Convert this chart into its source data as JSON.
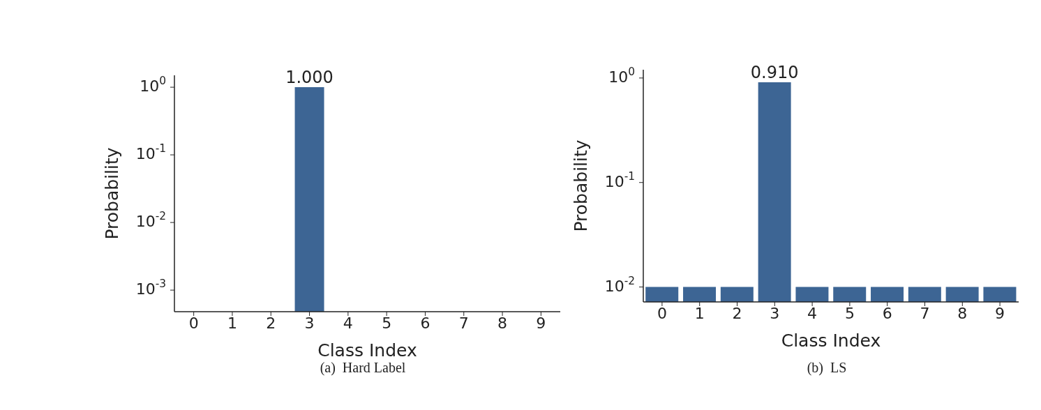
{
  "chart_data": [
    {
      "type": "bar",
      "xlabel": "Class Index",
      "ylabel": "Probability",
      "categories": [
        "0",
        "1",
        "2",
        "3",
        "4",
        "5",
        "6",
        "7",
        "8",
        "9"
      ],
      "values": [
        null,
        null,
        null,
        1.0,
        null,
        null,
        null,
        null,
        null,
        null
      ],
      "color": "#3d6594",
      "value_labels": [
        null,
        null,
        null,
        "1.000",
        null,
        null,
        null,
        null,
        null,
        null
      ],
      "log": true,
      "ylim": [
        0.00048,
        1.5
      ],
      "yticks": [
        {
          "value": 0.001,
          "label": "10$^{-3}$"
        },
        {
          "value": 0.01,
          "label": "10$^{-2}$"
        },
        {
          "value": 0.1,
          "label": "10$^{-1}$"
        },
        {
          "value": 1,
          "label": "10$^{0}$"
        }
      ],
      "grid": false,
      "legend": false,
      "annotations": [
        "(a)  Hard Label"
      ]
    },
    {
      "type": "bar",
      "xlabel": "Class Index",
      "ylabel": "Probability",
      "categories": [
        "0",
        "1",
        "2",
        "3",
        "4",
        "5",
        "6",
        "7",
        "8",
        "9"
      ],
      "values": [
        0.01,
        0.01,
        0.01,
        0.91,
        0.01,
        0.01,
        0.01,
        0.01,
        0.01,
        0.01
      ],
      "color": "#3d6594",
      "value_labels": [
        null,
        null,
        null,
        "0.910",
        null,
        null,
        null,
        null,
        null,
        null
      ],
      "log": true,
      "ylim": [
        0.0072,
        1.2
      ],
      "yticks": [
        {
          "value": 0.01,
          "label": "10$^{-2}$"
        },
        {
          "value": 0.1,
          "label": "10$^{-1}$"
        },
        {
          "value": 1,
          "label": "10$^{0}$"
        }
      ],
      "grid": false,
      "legend": false,
      "annotations": [
        "(b)  LS"
      ]
    }
  ]
}
